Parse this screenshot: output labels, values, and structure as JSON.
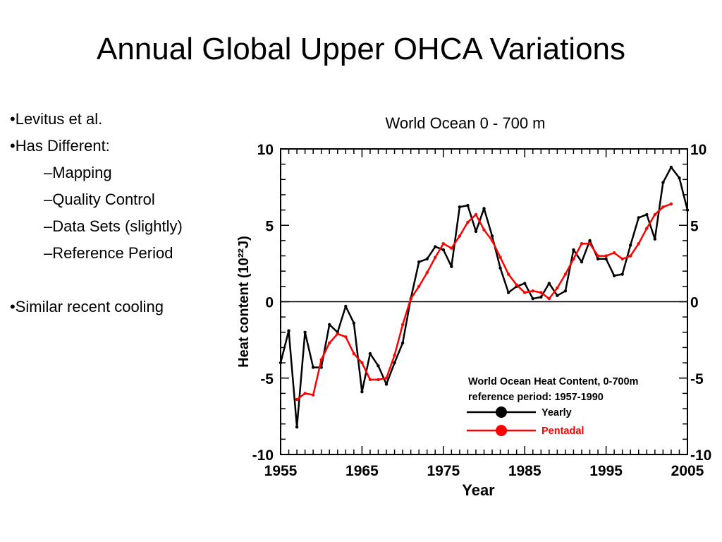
{
  "slide": {
    "title": "Annual Global Upper OHCA Variations",
    "bullets": [
      {
        "text": "•Levitus et al.",
        "level": 0
      },
      {
        "text": "•Has Different:",
        "level": 0
      },
      {
        "text": "–Mapping",
        "level": 1
      },
      {
        "text": "–Quality Control",
        "level": 1
      },
      {
        "text": "–Data Sets (slightly)",
        "level": 1
      },
      {
        "text": "–Reference Period",
        "level": 1
      },
      {
        "text": "•Similar recent cooling",
        "level": 0
      }
    ],
    "chart_caption": "World Ocean 0 - 700 m"
  },
  "chart_data": {
    "type": "line",
    "title": "World Ocean  Heat Content,  0-700m",
    "subtitle": "reference period: 1957-1990",
    "xlabel": "Year",
    "ylabel": "Heat content (10²²J)",
    "xlim": [
      1955,
      2005
    ],
    "ylim": [
      -10,
      10
    ],
    "x_ticks": [
      1955,
      1965,
      1975,
      1985,
      1995,
      2005
    ],
    "y_ticks": [
      -10,
      -5,
      0,
      5,
      10
    ],
    "grid": false,
    "zero_line": true,
    "legend_position": "bottom-right",
    "series": [
      {
        "name": "Yearly",
        "color": "#000000",
        "x": [
          1955,
          1956,
          1957,
          1958,
          1959,
          1960,
          1961,
          1962,
          1963,
          1964,
          1965,
          1966,
          1967,
          1968,
          1969,
          1970,
          1971,
          1972,
          1973,
          1974,
          1975,
          1976,
          1977,
          1978,
          1979,
          1980,
          1981,
          1982,
          1983,
          1984,
          1985,
          1986,
          1987,
          1988,
          1989,
          1990,
          1991,
          1992,
          1993,
          1994,
          1995,
          1996,
          1997,
          1998,
          1999,
          2000,
          2001,
          2002,
          2003,
          2004,
          2005
        ],
        "y": [
          -4.0,
          -1.9,
          -8.2,
          -2.0,
          -4.3,
          -4.3,
          -1.5,
          -2.0,
          -0.3,
          -1.4,
          -5.9,
          -3.4,
          -4.2,
          -5.4,
          -4.0,
          -2.7,
          0.2,
          2.6,
          2.8,
          3.6,
          3.4,
          2.3,
          6.2,
          6.3,
          4.6,
          6.1,
          4.3,
          2.2,
          0.6,
          1.0,
          1.2,
          0.2,
          0.3,
          1.2,
          0.4,
          0.7,
          3.4,
          2.6,
          4.0,
          2.8,
          2.8,
          1.7,
          1.8,
          3.7,
          5.5,
          5.7,
          4.1,
          7.8,
          8.8,
          8.1,
          6.0
        ]
      },
      {
        "name": "Pentadal",
        "color": "#ff0000",
        "x": [
          1957,
          1958,
          1959,
          1960,
          1961,
          1962,
          1963,
          1964,
          1965,
          1966,
          1967,
          1968,
          1969,
          1970,
          1971,
          1972,
          1973,
          1974,
          1975,
          1976,
          1977,
          1978,
          1979,
          1980,
          1981,
          1982,
          1983,
          1984,
          1985,
          1986,
          1987,
          1988,
          1989,
          1990,
          1991,
          1992,
          1993,
          1994,
          1995,
          1996,
          1997,
          1998,
          1999,
          2000,
          2001,
          2002,
          2003
        ],
        "y": [
          -6.4,
          -6.0,
          -6.1,
          -3.8,
          -2.7,
          -2.1,
          -2.3,
          -3.4,
          -4.0,
          -5.1,
          -5.1,
          -5.0,
          -3.5,
          -1.5,
          0.2,
          1.0,
          1.9,
          2.9,
          3.8,
          3.5,
          4.3,
          5.2,
          5.7,
          4.7,
          4.0,
          2.9,
          1.8,
          1.1,
          0.6,
          0.7,
          0.6,
          0.2,
          0.9,
          1.8,
          2.8,
          3.8,
          3.8,
          3.0,
          3.0,
          3.2,
          2.8,
          3.0,
          3.8,
          4.8,
          5.7,
          6.2,
          6.4
        ]
      }
    ]
  },
  "icons": {
    "yearly_marker": "filled-circle-black",
    "pentadal_marker": "filled-circle-red"
  }
}
